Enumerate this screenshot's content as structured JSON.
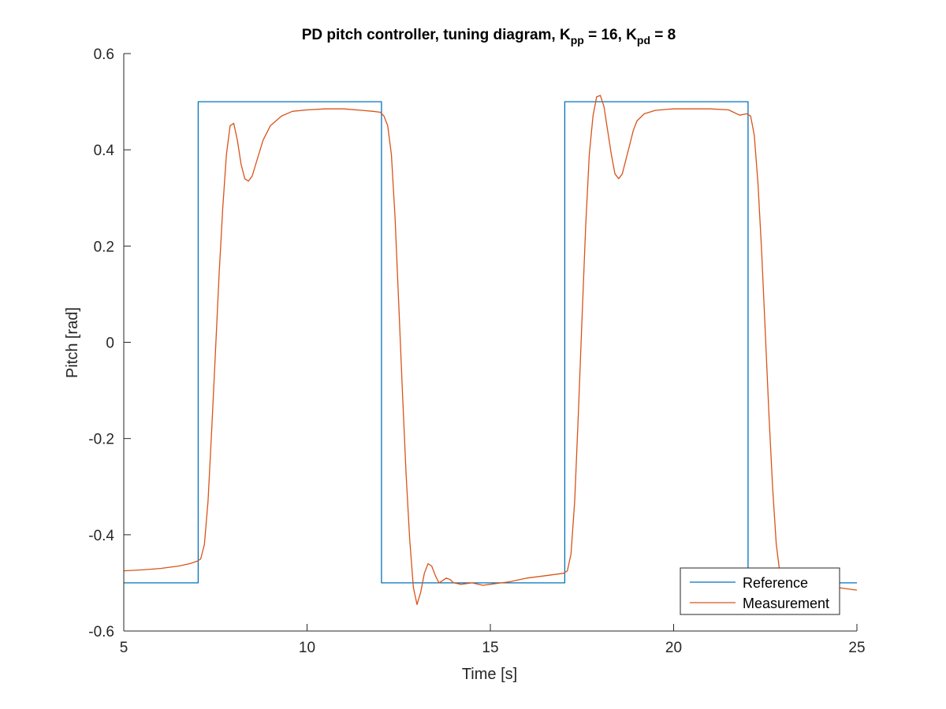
{
  "chart_data": {
    "type": "line",
    "title": "PD pitch controller, tuning diagram, K",
    "title_sub_pp": "pp",
    "title_mid": " = 16, K",
    "title_sub_pd": "pd",
    "title_end": " = 8",
    "xlabel": "Time [s]",
    "ylabel": "Pitch [rad]",
    "xlim": [
      5,
      25
    ],
    "ylim": [
      -0.6,
      0.6
    ],
    "xticks": [
      5,
      10,
      15,
      20,
      25
    ],
    "xtick_labels": [
      "5",
      "10",
      "15",
      "20",
      "25"
    ],
    "yticks": [
      -0.6,
      -0.4,
      -0.2,
      0,
      0.2,
      0.4,
      0.6
    ],
    "ytick_labels": [
      "-0.6",
      "-0.4",
      "-0.2",
      "0",
      "0.2",
      "0.4",
      "0.6"
    ],
    "grid": false,
    "legend_position": "bottom-right",
    "series": [
      {
        "name": "Reference",
        "color": "#0072bd",
        "x": [
          5,
          7.03,
          7.03,
          12.03,
          12.03,
          17.03,
          17.03,
          22.03,
          22.03,
          25
        ],
        "y": [
          -0.5,
          -0.5,
          0.5,
          0.5,
          -0.5,
          -0.5,
          0.5,
          0.5,
          -0.5,
          -0.5
        ]
      },
      {
        "name": "Measurement",
        "color": "#d95319",
        "x": [
          5,
          5.5,
          6,
          6.5,
          6.8,
          7.0,
          7.1,
          7.2,
          7.3,
          7.4,
          7.5,
          7.6,
          7.7,
          7.8,
          7.9,
          8.0,
          8.1,
          8.2,
          8.3,
          8.4,
          8.5,
          8.6,
          8.8,
          9.0,
          9.3,
          9.6,
          10.0,
          10.5,
          11.0,
          11.5,
          11.8,
          12.0,
          12.1,
          12.2,
          12.3,
          12.4,
          12.5,
          12.6,
          12.7,
          12.8,
          12.9,
          13.0,
          13.1,
          13.2,
          13.3,
          13.4,
          13.5,
          13.6,
          13.7,
          13.8,
          13.9,
          14.0,
          14.2,
          14.5,
          14.8,
          15.0,
          15.5,
          16.0,
          16.5,
          17.0,
          17.1,
          17.2,
          17.3,
          17.4,
          17.5,
          17.6,
          17.7,
          17.8,
          17.9,
          18.0,
          18.1,
          18.2,
          18.3,
          18.4,
          18.5,
          18.6,
          18.7,
          18.8,
          18.9,
          19.0,
          19.2,
          19.5,
          19.8,
          20.0,
          20.5,
          21.0,
          21.5,
          21.8,
          22.0,
          22.1,
          22.2,
          22.3,
          22.4,
          22.5,
          22.6,
          22.7,
          22.8,
          22.9,
          23.0,
          23.2,
          23.5,
          24.0,
          24.5,
          25.0
        ],
        "y": [
          -0.475,
          -0.473,
          -0.47,
          -0.465,
          -0.46,
          -0.455,
          -0.45,
          -0.42,
          -0.33,
          -0.18,
          -0.02,
          0.14,
          0.28,
          0.39,
          0.45,
          0.455,
          0.42,
          0.37,
          0.34,
          0.335,
          0.345,
          0.37,
          0.42,
          0.45,
          0.47,
          0.48,
          0.483,
          0.485,
          0.485,
          0.482,
          0.48,
          0.478,
          0.47,
          0.45,
          0.39,
          0.26,
          0.08,
          -0.1,
          -0.27,
          -0.41,
          -0.51,
          -0.545,
          -0.52,
          -0.48,
          -0.46,
          -0.465,
          -0.485,
          -0.5,
          -0.495,
          -0.49,
          -0.493,
          -0.5,
          -0.503,
          -0.5,
          -0.505,
          -0.503,
          -0.498,
          -0.49,
          -0.485,
          -0.48,
          -0.475,
          -0.44,
          -0.33,
          -0.15,
          0.05,
          0.24,
          0.39,
          0.47,
          0.51,
          0.513,
          0.49,
          0.44,
          0.39,
          0.35,
          0.34,
          0.35,
          0.38,
          0.41,
          0.44,
          0.46,
          0.475,
          0.482,
          0.484,
          0.485,
          0.485,
          0.485,
          0.483,
          0.472,
          0.475,
          0.47,
          0.43,
          0.33,
          0.19,
          0.02,
          -0.15,
          -0.3,
          -0.42,
          -0.48,
          -0.5,
          -0.505,
          -0.5,
          -0.507,
          -0.51,
          -0.515
        ]
      }
    ]
  }
}
